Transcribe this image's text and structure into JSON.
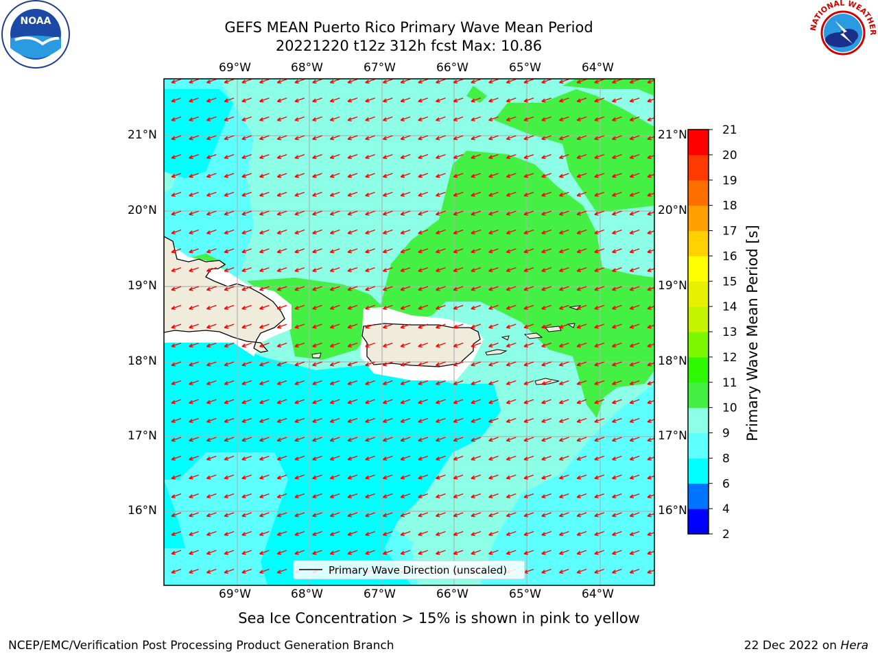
{
  "header": {
    "title_line1": "GEFS MEAN Puerto Rico Primary Wave Mean Period",
    "title_line2": "20221220 t12z 312h fcst   Max: 10.86"
  },
  "logos": {
    "left": "NOAA",
    "right": "NATIONAL WEATHER SERVICE"
  },
  "map": {
    "lon_labels": [
      "69°W",
      "68°W",
      "67°W",
      "66°W",
      "65°W",
      "64°W"
    ],
    "lat_labels": [
      "21°N",
      "20°N",
      "19°N",
      "18°N",
      "17°N",
      "16°N"
    ],
    "legend_label": "Primary Wave Direction (unscaled)",
    "arrow_color": "#ff0000",
    "land_color": "#efecdc"
  },
  "colorbar": {
    "label": "Primary Wave Mean Period [s]",
    "ticks": [
      "2",
      "4",
      "6",
      "8",
      "9",
      "10",
      "11",
      "12",
      "13",
      "14",
      "15",
      "16",
      "17",
      "18",
      "19",
      "20",
      "21"
    ],
    "colors": [
      "#0000ff",
      "#0073ff",
      "#00ffff",
      "#5effff",
      "#8cffe6",
      "#44f044",
      "#2ef900",
      "#7cf700",
      "#c5f400",
      "#e6f000",
      "#ffff00",
      "#ffd100",
      "#ffa000",
      "#ff6f00",
      "#ff3a00",
      "#ff0000"
    ]
  },
  "notes": {
    "sea_ice": "Sea Ice Concentration > 15% is shown in pink to yellow",
    "credit": "NCEP/EMC/Verification Post Processing Product Generation Branch",
    "date": "22 Dec 2022 on ",
    "host": "Hera"
  }
}
